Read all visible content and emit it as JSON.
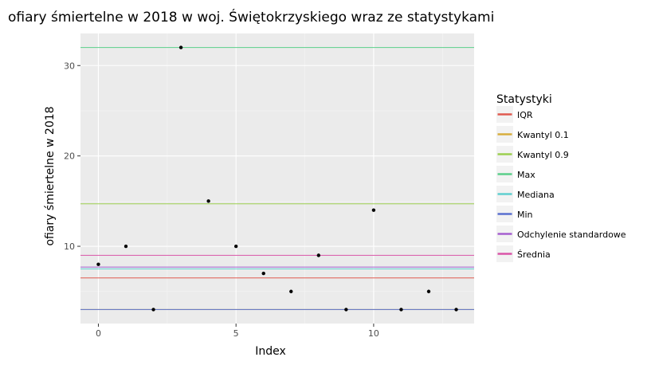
{
  "chart_data": {
    "type": "scatter",
    "title": "ofiary śmiertelne w 2018 w woj. Świętokrzyskiego wraz ze statystykami",
    "xlabel": "Index",
    "ylabel": "ofiary śmiertelne w 2018",
    "xlim": [
      -0.65,
      13.65
    ],
    "ylim": [
      1.45,
      33.55
    ],
    "x_ticks": [
      0,
      5,
      10
    ],
    "y_ticks": [
      10,
      20,
      30
    ],
    "x_minor": [
      2.5,
      7.5,
      12.5
    ],
    "y_minor": [
      5,
      15,
      25
    ],
    "grid": true,
    "panel_bg": "#ebebeb",
    "points": {
      "x": [
        0,
        1,
        2,
        3,
        4,
        5,
        6,
        7,
        8,
        9,
        10,
        11,
        12,
        13
      ],
      "y": [
        8,
        10,
        3,
        32,
        15,
        10,
        7,
        5,
        9,
        3,
        14,
        3,
        5,
        3
      ],
      "color": "#000000"
    },
    "legend_title": "Statystyki",
    "legend_position": "right",
    "hlines": [
      {
        "name": "IQR",
        "value": 6.5,
        "color": "#e05a50"
      },
      {
        "name": "Kwantyl 0.1",
        "value": 3.0,
        "color": "#d8ae3e"
      },
      {
        "name": "Kwantyl 0.9",
        "value": 14.7,
        "color": "#9bcf4f"
      },
      {
        "name": "Max",
        "value": 32.0,
        "color": "#5bcf8a"
      },
      {
        "name": "Mediana",
        "value": 7.5,
        "color": "#5fcfd0"
      },
      {
        "name": "Min",
        "value": 3.0,
        "color": "#5a70d0"
      },
      {
        "name": "Odchylenie standardowe",
        "value": 7.7,
        "color": "#a55fd0"
      },
      {
        "name": "Średnia",
        "value": 9.0,
        "color": "#d955a8"
      }
    ]
  }
}
